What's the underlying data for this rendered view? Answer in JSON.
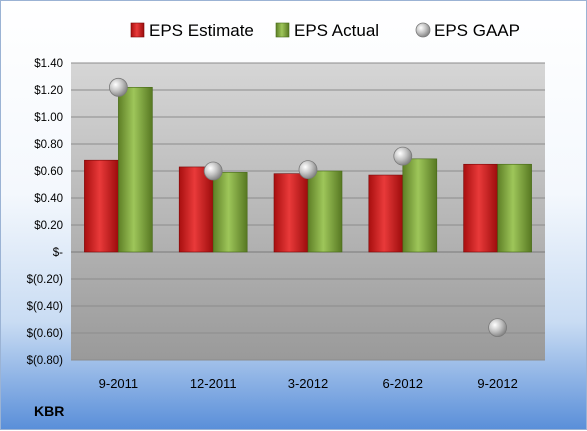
{
  "chart_data": {
    "type": "bar",
    "categories": [
      "9-2011",
      "12-2011",
      "3-2012",
      "6-2012",
      "9-2012"
    ],
    "series": [
      {
        "name": "EPS Estimate",
        "values": [
          0.68,
          0.63,
          0.58,
          0.57,
          0.65
        ],
        "color": "#d21f1f",
        "kind": "bar"
      },
      {
        "name": "EPS Actual",
        "values": [
          1.22,
          0.59,
          0.6,
          0.69,
          0.65
        ],
        "color": "#7ea53a",
        "kind": "bar"
      },
      {
        "name": "EPS GAAP",
        "values": [
          1.22,
          0.6,
          0.61,
          0.71,
          -0.56
        ],
        "color": "#b8b8b8",
        "kind": "marker"
      }
    ],
    "ylim": [
      -0.8,
      1.4
    ],
    "yticks": [
      1.4,
      1.2,
      1.0,
      0.8,
      0.6,
      0.4,
      0.2,
      0,
      -0.2,
      -0.4,
      -0.6,
      -0.8
    ],
    "ytick_labels": [
      "$1.40",
      "$1.20",
      "$1.00",
      "$0.80",
      "$0.60",
      "$0.40",
      "$0.20",
      "$-",
      "$(0.20)",
      "$(0.40)",
      "$(0.60)",
      "$(0.80)"
    ],
    "grid": true,
    "legend": "top"
  },
  "footer": {
    "ticker": "KBR"
  }
}
